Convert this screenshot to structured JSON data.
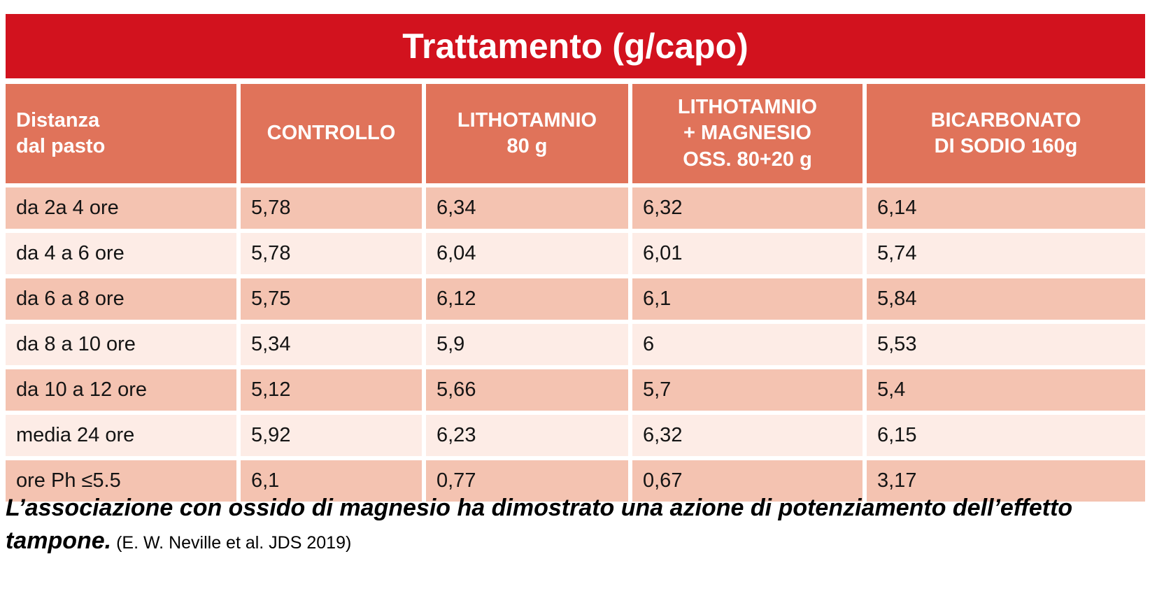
{
  "title": "Trattamento (g/capo)",
  "columns": [
    "Distanza\ndal pasto",
    "CONTROLLO",
    "LITHOTAMNIO\n80 g",
    "LITHOTAMNIO\n+ MAGNESIO\nOSS. 80+20 g",
    "BICARBONATO\nDI SODIO 160g"
  ],
  "rows": [
    {
      "label": "da 2a 4 ore",
      "values": [
        "5,78",
        "6,34",
        "6,32",
        "6,14"
      ]
    },
    {
      "label": "da 4 a 6 ore",
      "values": [
        "5,78",
        "6,04",
        "6,01",
        "5,74"
      ]
    },
    {
      "label": "da 6 a 8 ore",
      "values": [
        "5,75",
        "6,12",
        "6,1",
        "5,84"
      ]
    },
    {
      "label": "da 8 a 10 ore",
      "values": [
        "5,34",
        "5,9",
        "6",
        "5,53"
      ]
    },
    {
      "label": "da 10 a 12 ore",
      "values": [
        "5,12",
        "5,66",
        "5,7",
        "5,4"
      ]
    },
    {
      "label": "media 24 ore",
      "values": [
        "5,92",
        "6,23",
        "6,32",
        "6,15"
      ]
    },
    {
      "label": "ore Ph ≤5.5",
      "values": [
        "6,1",
        "0,77",
        "0,67",
        "3,17"
      ]
    }
  ],
  "footer": {
    "main_note": "L’associazione con ossido di magnesio ha dimostrato una azione di potenziamento dell’effetto tampone.",
    "citation": " (E. W. Neville et al. JDS 2019)"
  },
  "colors": {
    "title_red": "#d2121e",
    "header_coral": "#e0735a",
    "row_dark": "#f4c3b1",
    "row_light": "#fdece6",
    "text": "#141414"
  },
  "chart_data": {
    "type": "table",
    "title": "Trattamento (g/capo)",
    "row_header_label": "Distanza dal pasto",
    "columns": [
      "CONTROLLO",
      "LITHOTAMNIO 80 g",
      "LITHOTAMNIO + MAGNESIO OSS. 80+20 g",
      "BICARBONATO DI SODIO 160g"
    ],
    "categories": [
      "da 2a 4 ore",
      "da 4 a 6 ore",
      "da 6 a 8 ore",
      "da 8 a 10 ore",
      "da 10 a 12 ore",
      "media 24 ore",
      "ore Ph ≤5.5"
    ],
    "series": [
      {
        "name": "CONTROLLO",
        "values": [
          5.78,
          5.78,
          5.75,
          5.34,
          5.12,
          5.92,
          6.1
        ]
      },
      {
        "name": "LITHOTAMNIO 80 g",
        "values": [
          6.34,
          6.04,
          6.12,
          5.9,
          5.66,
          6.23,
          0.77
        ]
      },
      {
        "name": "LITHOTAMNIO + MAGNESIO OSS. 80+20 g",
        "values": [
          6.32,
          6.01,
          6.1,
          6.0,
          5.7,
          6.32,
          0.67
        ]
      },
      {
        "name": "BICARBONATO DI SODIO 160g",
        "values": [
          6.14,
          5.74,
          5.84,
          5.53,
          5.4,
          6.15,
          3.17
        ]
      }
    ],
    "note": "L’associazione con ossido di magnesio ha dimostrato una azione di potenziamento dell’effetto tampone. (E. W. Neville et al. JDS 2019)"
  }
}
